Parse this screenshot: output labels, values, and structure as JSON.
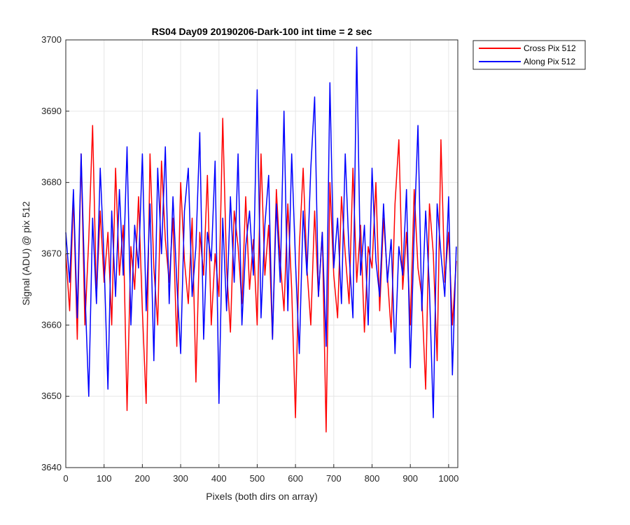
{
  "chart_data": {
    "type": "line",
    "title": "RS04 Day09 20190206-Dark-100 int time = 2 sec",
    "xlabel": "Pixels (both dirs on array)",
    "ylabel": "Signal (ADU) @ pix 512",
    "xlim": [
      0,
      1024
    ],
    "ylim": [
      3640,
      3700
    ],
    "xticks": [
      0,
      100,
      200,
      300,
      400,
      500,
      600,
      700,
      800,
      900,
      1000
    ],
    "yticks": [
      3640,
      3650,
      3660,
      3670,
      3680,
      3690,
      3700
    ],
    "grid": true,
    "legend_position": "outside-top-right",
    "series": [
      {
        "name": "Cross Pix 512",
        "color": "#ff0000",
        "x": [
          0,
          10,
          20,
          30,
          40,
          50,
          60,
          70,
          80,
          90,
          100,
          110,
          120,
          130,
          140,
          150,
          160,
          170,
          180,
          190,
          200,
          210,
          220,
          230,
          240,
          250,
          260,
          270,
          280,
          290,
          300,
          310,
          320,
          330,
          340,
          350,
          360,
          370,
          380,
          390,
          400,
          410,
          420,
          430,
          440,
          450,
          460,
          470,
          480,
          490,
          500,
          510,
          520,
          530,
          540,
          550,
          560,
          570,
          580,
          590,
          600,
          610,
          620,
          630,
          640,
          650,
          660,
          670,
          680,
          690,
          700,
          710,
          720,
          730,
          740,
          750,
          760,
          770,
          780,
          790,
          800,
          810,
          820,
          830,
          840,
          850,
          860,
          870,
          880,
          890,
          900,
          910,
          920,
          930,
          940,
          950,
          960,
          970,
          980,
          990,
          1000,
          1010,
          1020
        ],
        "y": [
          3670,
          3662,
          3678,
          3658,
          3684,
          3660,
          3672,
          3688,
          3664,
          3676,
          3666,
          3673,
          3660,
          3682,
          3667,
          3674,
          3648,
          3671,
          3665,
          3678,
          3662,
          3649,
          3684,
          3668,
          3660,
          3683,
          3672,
          3666,
          3675,
          3657,
          3680,
          3669,
          3663,
          3675,
          3652,
          3673,
          3667,
          3681,
          3660,
          3670,
          3664,
          3689,
          3668,
          3659,
          3676,
          3671,
          3663,
          3678,
          3665,
          3672,
          3660,
          3684,
          3667,
          3674,
          3658,
          3679,
          3669,
          3662,
          3677,
          3665,
          3647,
          3671,
          3682,
          3668,
          3660,
          3676,
          3664,
          3673,
          3645,
          3680,
          3667,
          3661,
          3678,
          3670,
          3663,
          3682,
          3666,
          3674,
          3659,
          3671,
          3668,
          3680,
          3662,
          3675,
          3667,
          3659,
          3677,
          3686,
          3665,
          3673,
          3660,
          3679,
          3668,
          3664,
          3651,
          3677,
          3670,
          3655,
          3686,
          3666,
          3673,
          3660,
          3669
        ]
      },
      {
        "name": "Along Pix 512",
        "color": "#0000ff",
        "x": [
          0,
          10,
          20,
          30,
          40,
          50,
          60,
          70,
          80,
          90,
          100,
          110,
          120,
          130,
          140,
          150,
          160,
          170,
          180,
          190,
          200,
          210,
          220,
          230,
          240,
          250,
          260,
          270,
          280,
          290,
          300,
          310,
          320,
          330,
          340,
          350,
          360,
          370,
          380,
          390,
          400,
          410,
          420,
          430,
          440,
          450,
          460,
          470,
          480,
          490,
          500,
          510,
          520,
          530,
          540,
          550,
          560,
          570,
          580,
          590,
          600,
          610,
          620,
          630,
          640,
          650,
          660,
          670,
          680,
          690,
          700,
          710,
          720,
          730,
          740,
          750,
          760,
          770,
          780,
          790,
          800,
          810,
          820,
          830,
          840,
          850,
          860,
          870,
          880,
          890,
          900,
          910,
          920,
          930,
          940,
          950,
          960,
          970,
          980,
          990,
          1000,
          1010,
          1020
        ],
        "y": [
          3673,
          3666,
          3679,
          3661,
          3684,
          3665,
          3650,
          3675,
          3663,
          3682,
          3669,
          3651,
          3676,
          3664,
          3679,
          3667,
          3685,
          3660,
          3674,
          3668,
          3684,
          3662,
          3677,
          3655,
          3682,
          3670,
          3685,
          3663,
          3678,
          3666,
          3656,
          3676,
          3682,
          3664,
          3671,
          3687,
          3658,
          3673,
          3669,
          3683,
          3649,
          3675,
          3662,
          3678,
          3666,
          3684,
          3660,
          3671,
          3676,
          3667,
          3693,
          3661,
          3674,
          3681,
          3658,
          3677,
          3666,
          3690,
          3662,
          3684,
          3669,
          3656,
          3676,
          3667,
          3682,
          3692,
          3664,
          3673,
          3657,
          3694,
          3668,
          3675,
          3663,
          3684,
          3670,
          3661,
          3699,
          3667,
          3674,
          3660,
          3682,
          3669,
          3664,
          3677,
          3666,
          3672,
          3656,
          3671,
          3667,
          3679,
          3654,
          3673,
          3688,
          3662,
          3676,
          3665,
          3647,
          3677,
          3670,
          3664,
          3678,
          3653,
          3671
        ]
      }
    ]
  }
}
